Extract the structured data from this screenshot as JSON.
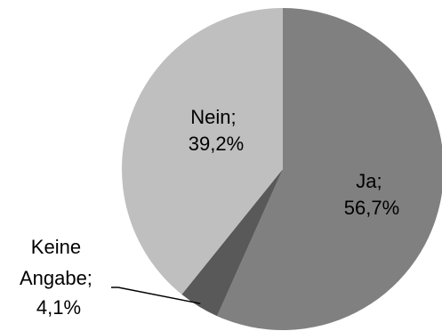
{
  "chart_data": {
    "type": "pie",
    "title": "",
    "start_angle_deg": 0,
    "direction": "clockwise",
    "slices": [
      {
        "label": "Ja",
        "value": 56.7,
        "value_text": "56,7%",
        "label_line1": "Ja;",
        "label_line2": "56,7%",
        "color": "#808080"
      },
      {
        "label": "Keine Angabe",
        "value": 4.1,
        "value_text": "4,1%",
        "label_line1": "Keine",
        "label_line2": "Angabe;",
        "label_line3": "4,1%",
        "color": "#595959"
      },
      {
        "label": "Nein",
        "value": 39.2,
        "value_text": "39,2%",
        "label_line1": "Nein;",
        "label_line2": "39,2%",
        "color": "#bfbfbf"
      }
    ]
  }
}
